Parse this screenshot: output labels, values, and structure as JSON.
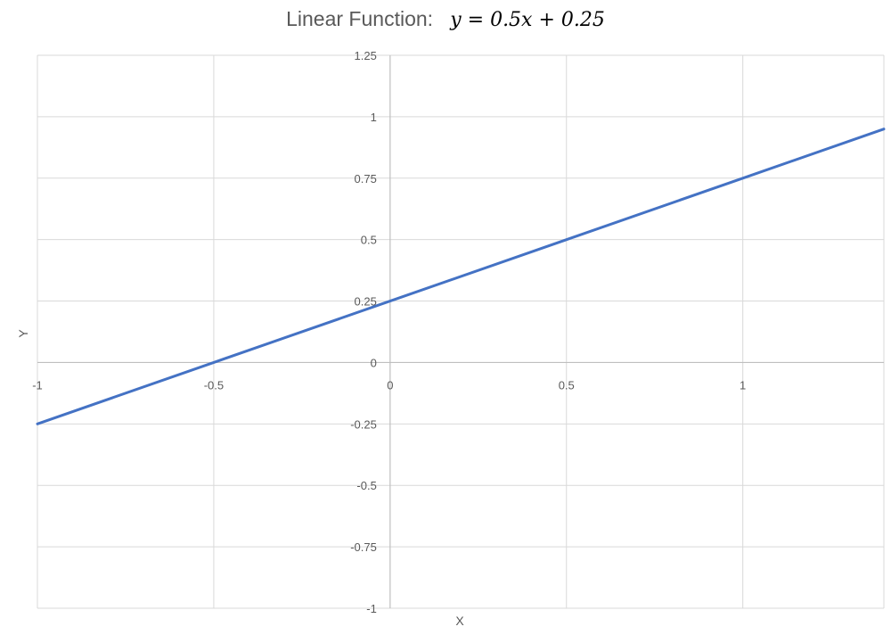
{
  "chart_data": {
    "type": "line",
    "title": "Linear Function:",
    "equation": "y = 0.5x + 0.25",
    "xlabel": "X",
    "ylabel": "Y",
    "xlim": [
      -1,
      1.4
    ],
    "ylim": [
      -1,
      1.25
    ],
    "x_ticks": [
      "-1",
      "-0.5",
      "0",
      "0.5",
      "1"
    ],
    "y_ticks": [
      "-1",
      "-0.75",
      "-0.5",
      "-0.25",
      "0",
      "0.25",
      "0.5",
      "0.75",
      "1",
      "1.25"
    ],
    "x_tick_values": [
      -1,
      -0.5,
      0,
      0.5,
      1
    ],
    "y_tick_values": [
      -1,
      -0.75,
      -0.5,
      -0.25,
      0,
      0.25,
      0.5,
      0.75,
      1,
      1.25
    ],
    "grid": true,
    "series": [
      {
        "x": [
          -1,
          -0.5,
          0,
          0.5,
          1,
          1.4
        ],
        "y": [
          -0.25,
          0,
          0.25,
          0.5,
          0.75,
          0.95
        ],
        "color": "#4472C4"
      }
    ]
  }
}
